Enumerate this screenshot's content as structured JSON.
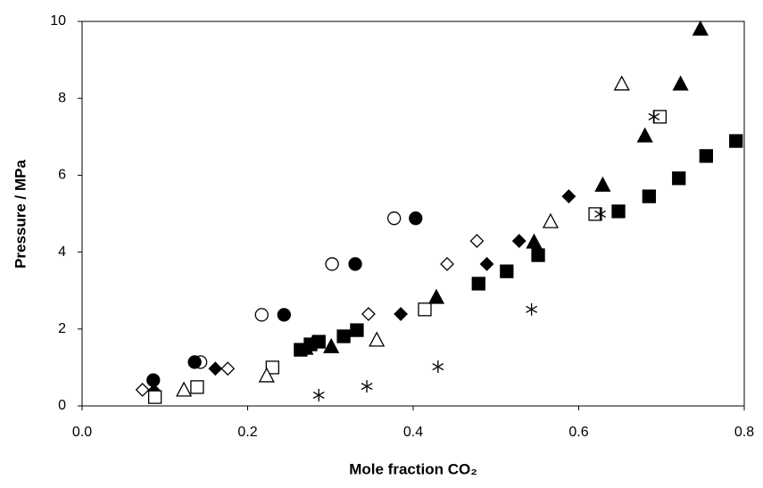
{
  "chart_data": {
    "type": "scatter",
    "x_label": "Mole fraction CO₂",
    "y_label": "Pressure / MPa",
    "xlim": [
      0,
      0.8
    ],
    "xticks": [
      {
        "value": 0,
        "label": "0.0"
      },
      {
        "value": 0.2,
        "label": "0.2"
      },
      {
        "value": 0.4,
        "label": "0.4"
      },
      {
        "value": 0.6,
        "label": "0.6"
      },
      {
        "value": 0.8,
        "label": "0.8"
      }
    ],
    "ylim": [
      0,
      10
    ],
    "yticks": [
      0,
      2,
      4,
      6,
      8,
      10
    ],
    "series": [
      {
        "marker": "circle-open",
        "color": "#000000",
        "x": [
          0.143,
          0.217,
          0.302,
          0.377
        ],
        "values": [
          1.14,
          2.37,
          3.69,
          4.88
        ]
      },
      {
        "marker": "circle-filled",
        "color": "#000000",
        "x": [
          0.086,
          0.136,
          0.244,
          0.33,
          0.403
        ],
        "values": [
          0.67,
          1.14,
          2.37,
          3.69,
          4.88
        ]
      },
      {
        "marker": "diamond-open",
        "color": "#000000",
        "x": [
          0.073,
          0.176,
          0.28,
          0.346,
          0.441,
          0.477
        ],
        "values": [
          0.42,
          0.97,
          1.67,
          2.39,
          3.69,
          4.29
        ]
      },
      {
        "marker": "diamond-filled",
        "color": "#000000",
        "x": [
          0.087,
          0.161,
          0.385,
          0.489,
          0.528,
          0.588
        ],
        "values": [
          0.39,
          0.97,
          2.39,
          3.69,
          4.29,
          5.45
        ]
      },
      {
        "marker": "square-open",
        "color": "#000000",
        "x": [
          0.088,
          0.139,
          0.23,
          0.414,
          0.62,
          0.698
        ],
        "values": [
          0.23,
          0.49,
          1.0,
          2.51,
          4.99,
          7.52
        ]
      },
      {
        "marker": "square-filled",
        "color": "#000000",
        "x": [
          0.264,
          0.276,
          0.286,
          0.316,
          0.332,
          0.479,
          0.513,
          0.551,
          0.648,
          0.685,
          0.721,
          0.754,
          0.79
        ],
        "values": [
          1.46,
          1.6,
          1.67,
          1.81,
          1.97,
          3.18,
          3.5,
          3.92,
          5.06,
          5.45,
          5.92,
          6.5,
          6.89
        ]
      },
      {
        "marker": "triangle-open",
        "color": "#000000",
        "x": [
          0.123,
          0.223,
          0.356,
          0.566,
          0.652
        ],
        "values": [
          0.42,
          0.79,
          1.72,
          4.8,
          8.38
        ]
      },
      {
        "marker": "triangle-filled",
        "color": "#000000",
        "x": [
          0.27,
          0.301,
          0.428,
          0.546,
          0.629,
          0.68,
          0.723,
          0.747
        ],
        "values": [
          1.51,
          1.55,
          2.83,
          4.27,
          5.75,
          7.03,
          8.38,
          9.81
        ]
      },
      {
        "marker": "asterisk",
        "color": "#000000",
        "x": [
          0.286,
          0.344,
          0.43,
          0.543,
          0.626,
          0.691
        ],
        "values": [
          0.28,
          0.51,
          1.02,
          2.51,
          4.99,
          7.52
        ]
      }
    ]
  }
}
